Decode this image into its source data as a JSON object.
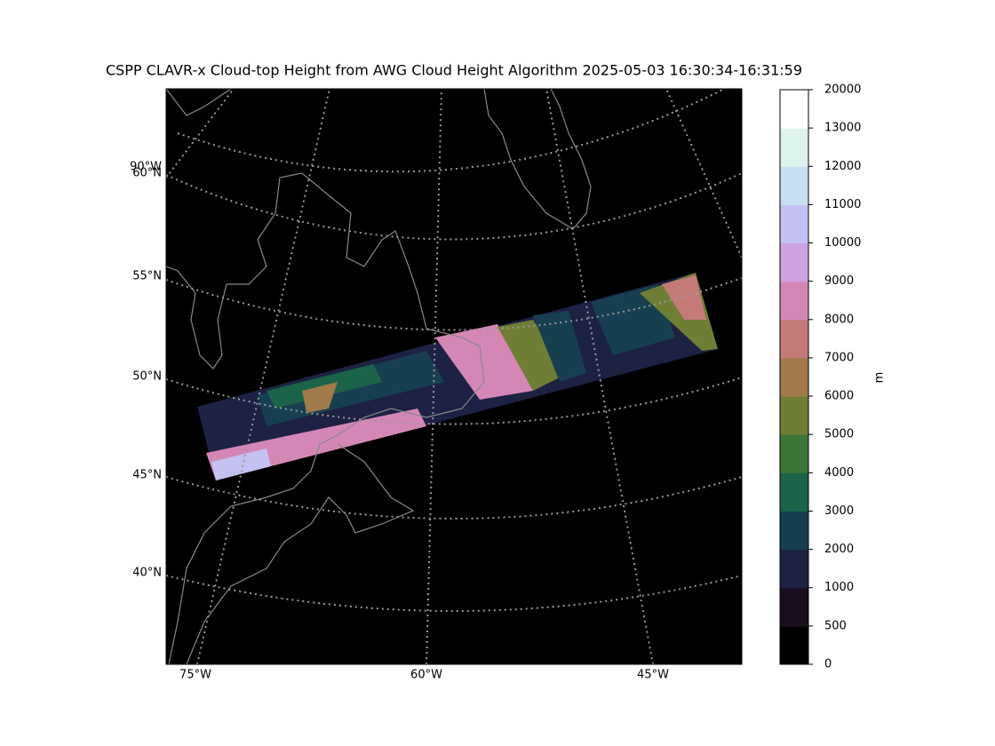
{
  "title": "CSPP CLAVR-x Cloud-top Height from AWG Cloud Height Algorithm 2025-05-03 16:30:34-16:31:59",
  "map": {
    "lat_labels": [
      "90°W",
      "60°N",
      "55°N",
      "50°N",
      "45°N",
      "40°N"
    ],
    "lon_labels": [
      "75°W",
      "60°W",
      "45°W"
    ]
  },
  "colorbar": {
    "label": "m",
    "ticks": [
      0,
      500,
      1000,
      2000,
      3000,
      4000,
      5000,
      6000,
      7000,
      8000,
      9000,
      10000,
      11000,
      12000,
      13000,
      20000
    ],
    "colors": [
      "#000000",
      "#1a0f1e",
      "#1d2243",
      "#183f4f",
      "#1b6349",
      "#3b7537",
      "#6f7e35",
      "#a07a4a",
      "#c57a7a",
      "#d487b5",
      "#cea2de",
      "#c4c2f1",
      "#c8dff1",
      "#def3ee",
      "#ffffff"
    ]
  }
}
